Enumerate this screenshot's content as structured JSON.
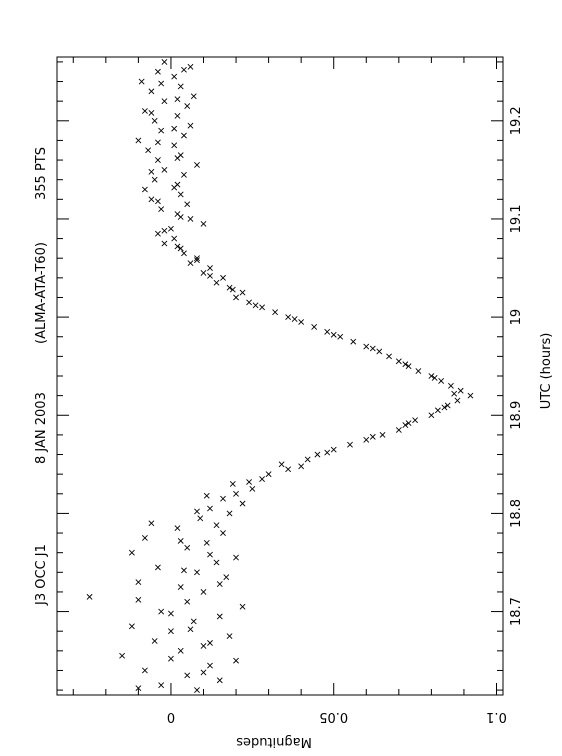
{
  "chart_data": {
    "type": "scatter",
    "title_parts": [
      "J3 OCC J1",
      "8 JAN 2003",
      "(ALMA-ATA-T60)",
      "355 PTS"
    ],
    "xlabel": "UTC (hours)",
    "ylabel": "Magnitudes",
    "xlim": [
      18.615,
      19.265
    ],
    "ylim": [
      -0.035,
      0.102
    ],
    "x_ticks": [
      18.7,
      18.8,
      18.9,
      19,
      19.1,
      19.2
    ],
    "x_tick_labels": [
      "18.7",
      "18.8",
      "18.9",
      "19",
      "19.1",
      "19.2"
    ],
    "y_ticks": [
      0,
      0.05,
      0.1
    ],
    "y_tick_labels": [
      "0",
      "0.05",
      "0.1"
    ],
    "marker": "x",
    "grid": false,
    "series": [
      {
        "points": [
          [
            18.62,
            0.008
          ],
          [
            18.625,
            -0.003
          ],
          [
            18.63,
            0.015
          ],
          [
            18.635,
            0.005
          ],
          [
            18.64,
            -0.008
          ],
          [
            18.645,
            0.012
          ],
          [
            18.65,
            0.02
          ],
          [
            18.655,
            -0.015
          ],
          [
            18.66,
            0.003
          ],
          [
            18.665,
            0.01
          ],
          [
            18.67,
            -0.005
          ],
          [
            18.675,
            0.018
          ],
          [
            18.68,
            0.0
          ],
          [
            18.685,
            -0.012
          ],
          [
            18.69,
            0.007
          ],
          [
            18.695,
            0.015
          ],
          [
            18.7,
            -0.003
          ],
          [
            18.705,
            0.022
          ],
          [
            18.71,
            0.005
          ],
          [
            18.715,
            -0.025
          ],
          [
            18.72,
            0.01
          ],
          [
            18.725,
            0.003
          ],
          [
            18.73,
            -0.01
          ],
          [
            18.735,
            0.017
          ],
          [
            18.74,
            0.008
          ],
          [
            18.745,
            -0.004
          ],
          [
            18.75,
            0.014
          ],
          [
            18.755,
            0.02
          ],
          [
            18.76,
            -0.012
          ],
          [
            18.765,
            0.005
          ],
          [
            18.77,
            0.011
          ],
          [
            18.775,
            -0.008
          ],
          [
            18.78,
            0.016
          ],
          [
            18.785,
            0.002
          ],
          [
            18.79,
            -0.006
          ],
          [
            18.795,
            0.009
          ],
          [
            18.8,
            0.018
          ],
          [
            18.805,
            0.012
          ],
          [
            18.81,
            0.022
          ],
          [
            18.815,
            0.016
          ],
          [
            18.82,
            0.02
          ],
          [
            18.825,
            0.025
          ],
          [
            18.83,
            0.019
          ],
          [
            18.835,
            0.028
          ],
          [
            18.84,
            0.03
          ],
          [
            18.845,
            0.036
          ],
          [
            18.85,
            0.034
          ],
          [
            18.855,
            0.042
          ],
          [
            18.86,
            0.045
          ],
          [
            18.865,
            0.05
          ],
          [
            18.87,
            0.055
          ],
          [
            18.875,
            0.06
          ],
          [
            18.88,
            0.065
          ],
          [
            18.885,
            0.07
          ],
          [
            18.89,
            0.072
          ],
          [
            18.895,
            0.075
          ],
          [
            18.9,
            0.08
          ],
          [
            18.905,
            0.082
          ],
          [
            18.91,
            0.085
          ],
          [
            18.915,
            0.088
          ],
          [
            18.92,
            0.092
          ],
          [
            18.925,
            0.089
          ],
          [
            18.93,
            0.086
          ],
          [
            18.935,
            0.083
          ],
          [
            18.94,
            0.08
          ],
          [
            18.945,
            0.076
          ],
          [
            18.95,
            0.073
          ],
          [
            18.955,
            0.07
          ],
          [
            18.96,
            0.067
          ],
          [
            18.965,
            0.064
          ],
          [
            18.97,
            0.06
          ],
          [
            18.975,
            0.056
          ],
          [
            18.98,
            0.052
          ],
          [
            18.985,
            0.048
          ],
          [
            18.99,
            0.044
          ],
          [
            18.995,
            0.04
          ],
          [
            19.0,
            0.036
          ],
          [
            19.005,
            0.032
          ],
          [
            19.01,
            0.028
          ],
          [
            19.015,
            0.024
          ],
          [
            19.02,
            0.02
          ],
          [
            19.025,
            0.022
          ],
          [
            19.03,
            0.018
          ],
          [
            19.035,
            0.014
          ],
          [
            19.04,
            0.016
          ],
          [
            19.045,
            0.01
          ],
          [
            19.05,
            0.012
          ],
          [
            19.055,
            0.006
          ],
          [
            19.06,
            0.008
          ],
          [
            19.065,
            0.004
          ],
          [
            19.07,
            0.003
          ],
          [
            19.075,
            -0.002
          ],
          [
            19.08,
            0.001
          ],
          [
            19.085,
            -0.004
          ],
          [
            19.09,
            0.0
          ],
          [
            19.095,
            0.01
          ],
          [
            19.1,
            0.006
          ],
          [
            19.105,
            0.002
          ],
          [
            19.11,
            -0.003
          ],
          [
            19.115,
            0.005
          ],
          [
            19.12,
            -0.006
          ],
          [
            19.125,
            0.003
          ],
          [
            19.13,
            -0.008
          ],
          [
            19.135,
            0.002
          ],
          [
            19.14,
            -0.005
          ],
          [
            19.145,
            0.004
          ],
          [
            19.15,
            -0.002
          ],
          [
            19.155,
            0.008
          ],
          [
            19.16,
            -0.004
          ],
          [
            19.165,
            0.003
          ],
          [
            19.17,
            -0.007
          ],
          [
            19.175,
            0.001
          ],
          [
            19.18,
            -0.01
          ],
          [
            19.185,
            0.004
          ],
          [
            19.19,
            -0.003
          ],
          [
            19.195,
            0.006
          ],
          [
            19.2,
            -0.005
          ],
          [
            19.205,
            0.002
          ],
          [
            19.21,
            -0.008
          ],
          [
            19.215,
            0.005
          ],
          [
            19.22,
            -0.002
          ],
          [
            19.225,
            0.007
          ],
          [
            19.23,
            -0.006
          ],
          [
            19.235,
            0.003
          ],
          [
            19.24,
            -0.009
          ],
          [
            19.245,
            0.001
          ],
          [
            19.25,
            -0.004
          ],
          [
            19.255,
            0.006
          ],
          [
            19.26,
            -0.002
          ],
          [
            18.622,
            -0.01
          ],
          [
            18.638,
            0.01
          ],
          [
            18.652,
            0.0
          ],
          [
            18.668,
            0.012
          ],
          [
            18.682,
            0.006
          ],
          [
            18.698,
            0.0
          ],
          [
            18.712,
            -0.01
          ],
          [
            18.728,
            0.015
          ],
          [
            18.742,
            0.004
          ],
          [
            18.758,
            0.012
          ],
          [
            18.772,
            0.003
          ],
          [
            18.788,
            0.014
          ],
          [
            18.802,
            0.008
          ],
          [
            18.818,
            0.011
          ],
          [
            18.832,
            0.024
          ],
          [
            18.848,
            0.04
          ],
          [
            18.862,
            0.048
          ],
          [
            18.878,
            0.062
          ],
          [
            18.892,
            0.073
          ],
          [
            18.908,
            0.084
          ],
          [
            18.922,
            0.087
          ],
          [
            18.938,
            0.081
          ],
          [
            18.952,
            0.072
          ],
          [
            18.968,
            0.062
          ],
          [
            18.982,
            0.05
          ],
          [
            18.998,
            0.038
          ],
          [
            19.012,
            0.026
          ],
          [
            19.028,
            0.019
          ],
          [
            19.042,
            0.012
          ],
          [
            19.058,
            0.008
          ],
          [
            19.072,
            0.002
          ],
          [
            19.088,
            -0.002
          ],
          [
            19.102,
            0.003
          ],
          [
            19.118,
            -0.004
          ],
          [
            19.132,
            0.001
          ],
          [
            19.148,
            -0.006
          ],
          [
            19.162,
            0.002
          ],
          [
            19.178,
            -0.004
          ],
          [
            19.192,
            0.001
          ],
          [
            19.208,
            -0.006
          ],
          [
            19.222,
            0.002
          ],
          [
            19.238,
            -0.003
          ],
          [
            19.252,
            0.004
          ]
        ]
      }
    ]
  }
}
